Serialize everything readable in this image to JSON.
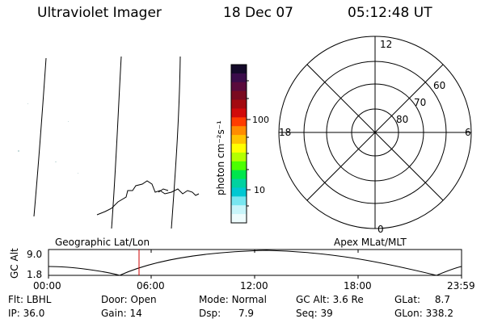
{
  "header": {
    "title": "Ultraviolet Imager",
    "date": "18 Dec 07",
    "time": "05:12:48 UT"
  },
  "colorbar": {
    "label": "photon cm⁻²s⁻¹",
    "ticks": [
      "100",
      "10"
    ],
    "colors": [
      "#140a2a",
      "#3a0c4a",
      "#5a0a3c",
      "#7a0a20",
      "#a30a10",
      "#d10a0a",
      "#ff3c00",
      "#ff8c00",
      "#ffc400",
      "#ffff00",
      "#b4ff00",
      "#4cff00",
      "#00e64c",
      "#00d2a0",
      "#00c8d2",
      "#78e6f0",
      "#c8f5fa",
      "#eefcfd"
    ]
  },
  "polar": {
    "mlt_labels": {
      "top": "12",
      "left": "18",
      "right": "6",
      "bottom": "0"
    },
    "lat_labels": [
      "60",
      "70",
      "80"
    ]
  },
  "panel_labels": {
    "left": "Geographic Lat/Lon",
    "right": "Apex MLat/MLT"
  },
  "altitude_plot": {
    "ylabel": "GC Alt",
    "yticks": [
      "9.0",
      "1.8"
    ],
    "xticks": [
      "00:00",
      "06:00",
      "12:00",
      "18:00",
      "23:59"
    ],
    "marker_color": "#cc0000"
  },
  "info": {
    "flt_label": "Flt:",
    "flt_value": "LBHL",
    "door_label": "Door:",
    "door_value": "Open",
    "mode_label": "Mode:",
    "mode_value": "Normal",
    "gcalt_label": "GC Alt:",
    "gcalt_value": "3.6 Re",
    "glat_label": "GLat:",
    "glat_value": "8.7",
    "ip_label": "IP:",
    "ip_value": "36.0",
    "gain_label": "Gain:",
    "gain_value": "14",
    "dsp_label": "Dsp:",
    "dsp_value": "7.9",
    "seq_label": "Seq:",
    "seq_value": "39",
    "glon_label": "GLon:",
    "glon_value": "338.2"
  }
}
